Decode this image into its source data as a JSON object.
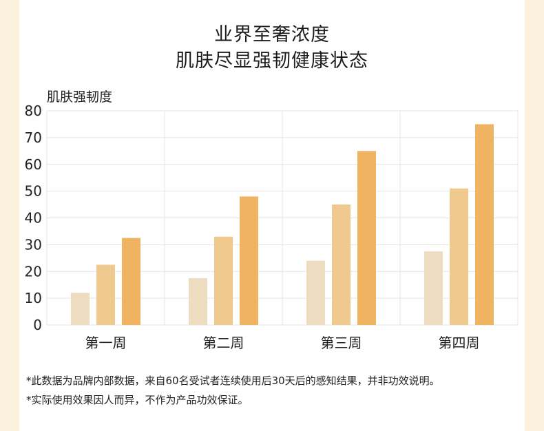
{
  "title_line1": "业界至奢浓度",
  "title_line2": "肌肤尽显强韧健康状态",
  "chart_data": {
    "type": "bar",
    "ylabel": "肌肤强韧度",
    "xlabel": "",
    "ylim": [
      0,
      80
    ],
    "yticks": [
      0,
      10,
      20,
      30,
      40,
      50,
      60,
      70,
      80
    ],
    "categories": [
      "第一周",
      "第二周",
      "第三周",
      "第四周"
    ],
    "series": [
      {
        "values": [
          12,
          17.5,
          24,
          27.5
        ],
        "color": "#eddcc0"
      },
      {
        "values": [
          22.5,
          33,
          45,
          51
        ],
        "color": "#f0c98f"
      },
      {
        "values": [
          32.5,
          48,
          65,
          75
        ],
        "color": "#efb361"
      }
    ],
    "grid": true
  },
  "notes": [
    "*此数据为品牌内部数据，来自60名受试者连续使用后30天后的感知结果，并非功效说明。",
    "*实际使用效果因人而异，不作为产品功效保证。"
  ]
}
